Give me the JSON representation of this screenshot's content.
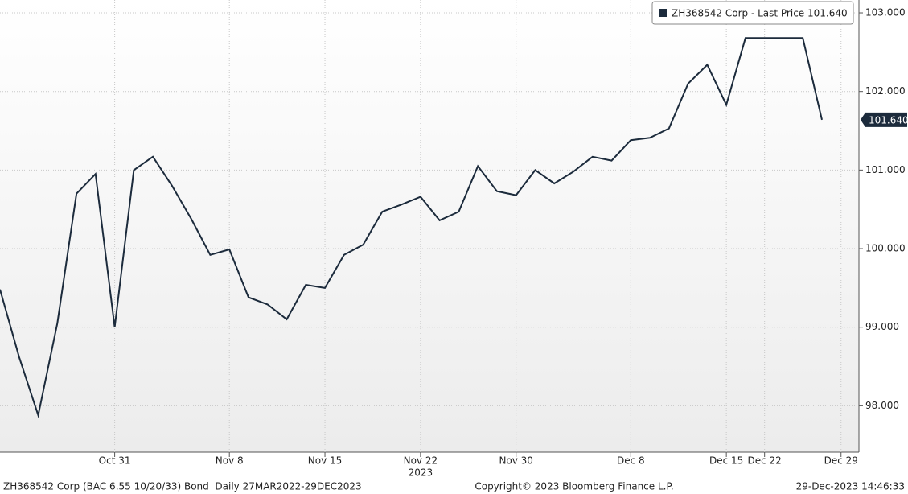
{
  "chart_data": {
    "type": "line",
    "categories": [
      null,
      null,
      null,
      null,
      null,
      null,
      "Oct 31",
      null,
      null,
      null,
      null,
      null,
      "Nov 8",
      null,
      null,
      null,
      null,
      "Nov 15",
      null,
      null,
      null,
      null,
      "Nov 22",
      null,
      null,
      null,
      null,
      "Nov 30",
      null,
      null,
      null,
      null,
      null,
      "Dec 8",
      null,
      null,
      null,
      null,
      "Dec 15",
      null,
      "Dec 22",
      null,
      null,
      null,
      "Dec 29"
    ],
    "year_label": "2023",
    "series": [
      {
        "name": "ZH368542 Corp - Last Price 101.640",
        "color": "#1c2b3c",
        "values": [
          99.48,
          98.62,
          97.88,
          99.05,
          100.7,
          100.95,
          99.0,
          101.0,
          101.17,
          100.8,
          100.38,
          99.92,
          99.99,
          99.38,
          99.29,
          99.1,
          99.54,
          99.5,
          99.92,
          100.05,
          100.47,
          100.56,
          100.66,
          100.36,
          100.47,
          101.05,
          100.73,
          100.68,
          101.0,
          100.83,
          100.98,
          101.17,
          101.12,
          101.38,
          101.41,
          101.53,
          102.1,
          102.34,
          101.83,
          102.68,
          102.68,
          102.68,
          102.68,
          101.64,
          null
        ],
        "last_value_label": "101.640"
      }
    ],
    "ylim": [
      97.41,
      103.164
    ],
    "yticks": [
      {
        "value": 98,
        "label": "98.000"
      },
      {
        "value": 99,
        "label": "99.000"
      },
      {
        "value": 100,
        "label": "100.000"
      },
      {
        "value": 101,
        "label": "101.000"
      },
      {
        "value": 102,
        "label": "102.000"
      },
      {
        "value": 103,
        "label": "103.000"
      }
    ],
    "grid": true,
    "legend": "top-right",
    "footer_left": "ZH368542 Corp (BAC 6.55 10/20/33) Bond  Daily 27MAR2022-29DEC2023",
    "footer_center": "Copyright© 2023 Bloomberg Finance L.P.",
    "footer_right": "29-Dec-2023 14:46:33"
  }
}
